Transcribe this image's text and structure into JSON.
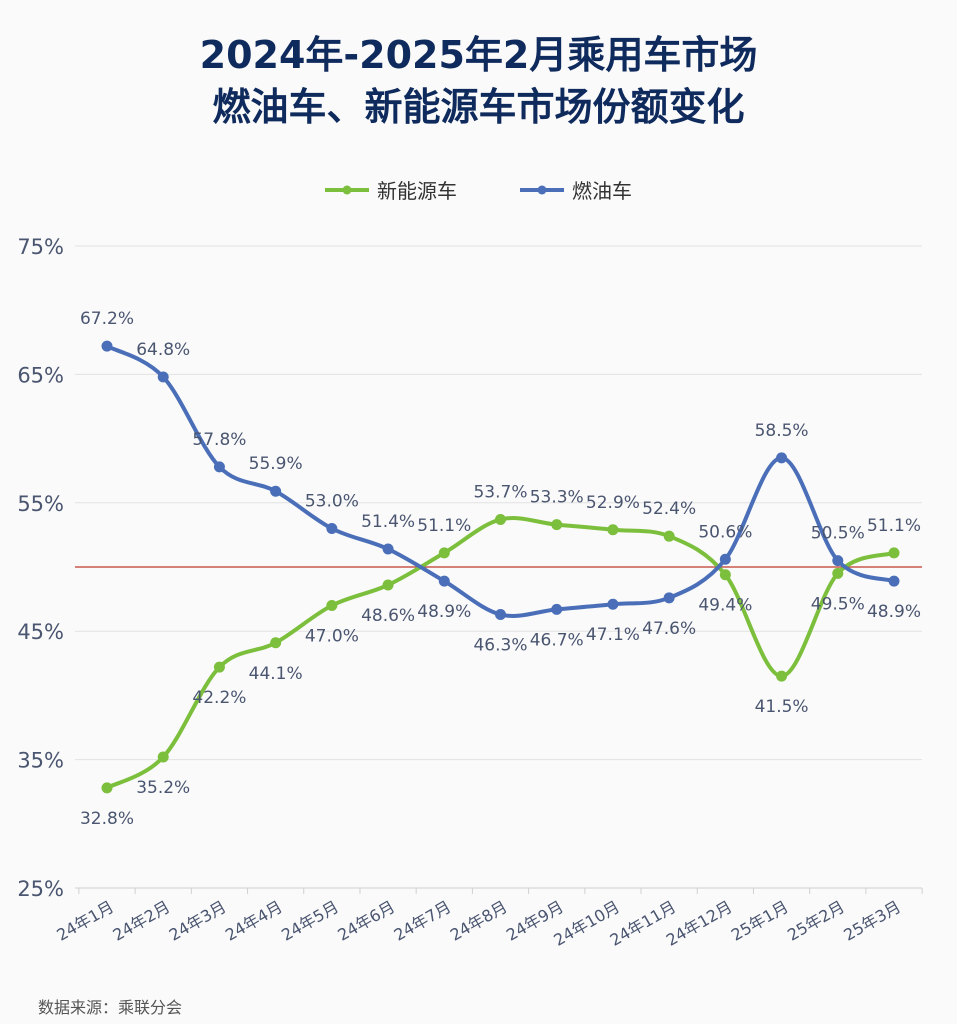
{
  "title_lines": [
    "2024年-2025年2月乘用车市场",
    "燃油车、新能源车市场份额变化"
  ],
  "source": "数据来源：乘联分会",
  "chart_data": {
    "type": "line",
    "categories": [
      "24年1月",
      "24年2月",
      "24年3月",
      "24年4月",
      "24年5月",
      "24年6月",
      "24年7月",
      "24年8月",
      "24年9月",
      "24年10月",
      "24年11月",
      "24年12月",
      "25年1月",
      "25年2月",
      "25年3月"
    ],
    "series": [
      {
        "name": "新能源车",
        "color": "#7cbf3c",
        "values": [
          32.8,
          35.2,
          42.2,
          44.1,
          47.0,
          48.6,
          51.1,
          53.7,
          53.3,
          52.9,
          52.4,
          49.4,
          41.5,
          49.5,
          51.1
        ]
      },
      {
        "name": "燃油车",
        "color": "#4a6fb8",
        "values": [
          67.2,
          64.8,
          57.8,
          55.9,
          53.0,
          51.4,
          48.9,
          46.3,
          46.7,
          47.1,
          47.6,
          50.6,
          58.5,
          50.5,
          48.9
        ]
      }
    ],
    "yticks": [
      "25%",
      "35%",
      "45%",
      "55%",
      "65%",
      "75%"
    ],
    "ylim": [
      25,
      75
    ],
    "reference_line": {
      "value": 50,
      "color": "#c0392b"
    },
    "legend": "top",
    "grid": true,
    "smooth": true,
    "value_suffix": "%"
  }
}
